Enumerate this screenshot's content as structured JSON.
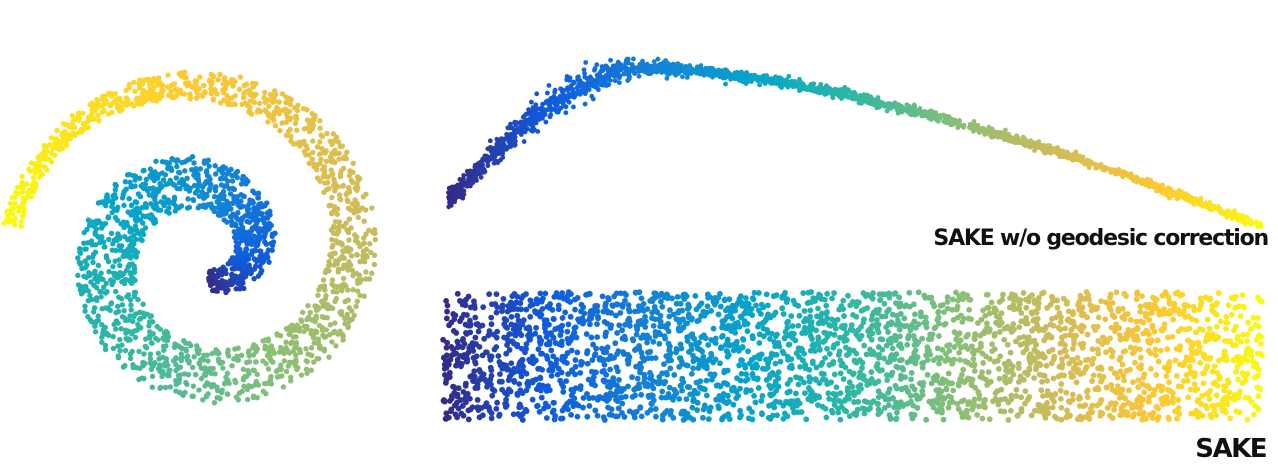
{
  "figure": {
    "panels": [
      {
        "id": "swiss-roll",
        "label": ""
      },
      {
        "id": "sake-without-geodesic-correction",
        "label": "SAKE w/o geodesic correction"
      },
      {
        "id": "sake",
        "label": "SAKE"
      }
    ]
  },
  "colors": {
    "colormap": "parula",
    "stops": [
      "#352a87",
      "#0f5cdd",
      "#1481d6",
      "#06a4ca",
      "#2eb7a4",
      "#87bf77",
      "#d1bb59",
      "#fec832",
      "#f9fb0e"
    ]
  },
  "chart_data": [
    {
      "type": "scatter",
      "title": "",
      "description_shape": "2D spiral (swiss roll) point cloud",
      "color_by": "position along roll, from dark blue at inner end to yellow at outer end",
      "parameter_range": [
        0,
        1
      ],
      "turns": 1.7,
      "n_points": 2200
    },
    {
      "type": "scatter",
      "title": "SAKE w/o geodesic correction",
      "description_shape": "thin curved band (embedding collapsed to a curve)",
      "color_by": "position along roll, dark blue (left) to yellow (right)",
      "parameter_range": [
        0,
        1
      ],
      "n_points": 2000
    },
    {
      "type": "scatter",
      "title": "SAKE",
      "description_shape": "uniform rectangular strip (unrolled)",
      "color_by": "position along roll, dark blue (left) to yellow (right)",
      "parameter_range": [
        0,
        1
      ],
      "n_points": 3000
    }
  ]
}
